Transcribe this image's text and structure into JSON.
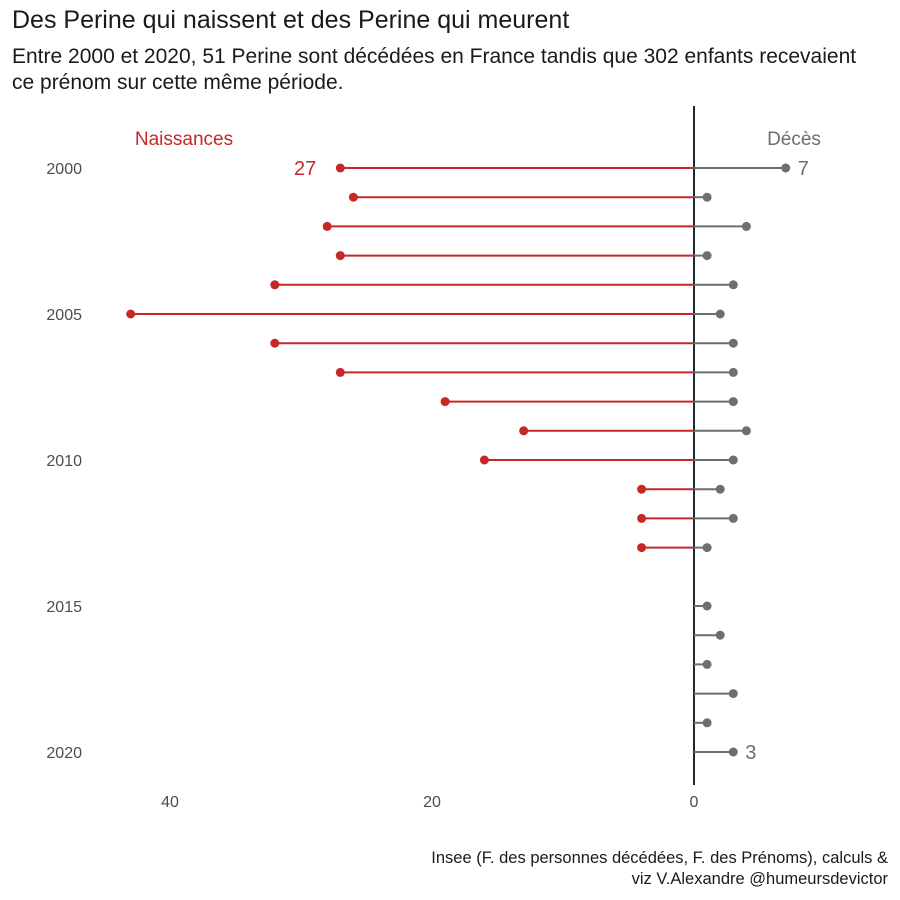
{
  "title": "Des Perine qui naissent et des Perine qui meurent",
  "subtitle": "Entre 2000 et 2020, 51 Perine sont décédées en France tandis que 302 enfants recevaient ce prénom sur cette même période.",
  "caption_line1": "Insee (F. des personnes décédées, F. des Prénoms), calculs &",
  "caption_line2": "viz V.Alexandre @humeursdevictor",
  "chart_data": {
    "type": "lollipop",
    "years": [
      2000,
      2001,
      2002,
      2003,
      2004,
      2005,
      2006,
      2007,
      2008,
      2009,
      2010,
      2011,
      2012,
      2013,
      2014,
      2015,
      2016,
      2017,
      2018,
      2019,
      2020
    ],
    "series": [
      {
        "name": "Naissances",
        "color": "#c62828",
        "side": "left",
        "values": [
          27,
          26,
          28,
          27,
          32,
          43,
          32,
          27,
          19,
          13,
          16,
          4,
          4,
          4,
          0,
          0,
          0,
          0,
          0,
          0,
          0
        ]
      },
      {
        "name": "Décès",
        "color": "#6e6e6e",
        "side": "right",
        "values": [
          7,
          1,
          4,
          1,
          3,
          2,
          3,
          3,
          3,
          4,
          3,
          2,
          3,
          1,
          0,
          1,
          2,
          1,
          3,
          1,
          3
        ]
      }
    ],
    "y_tick_labels": [
      "2000",
      "2005",
      "2010",
      "2015",
      "2020"
    ],
    "x_tick_labels": [
      "40",
      "20",
      "0"
    ],
    "annotations": [
      {
        "series": "Naissances",
        "year": 2000,
        "text": "27"
      },
      {
        "series": "Décès",
        "year": 2000,
        "text": "7"
      },
      {
        "series": "Décès",
        "year": 2020,
        "text": "3"
      }
    ],
    "xlim": [
      44,
      11
    ],
    "grid": false
  }
}
